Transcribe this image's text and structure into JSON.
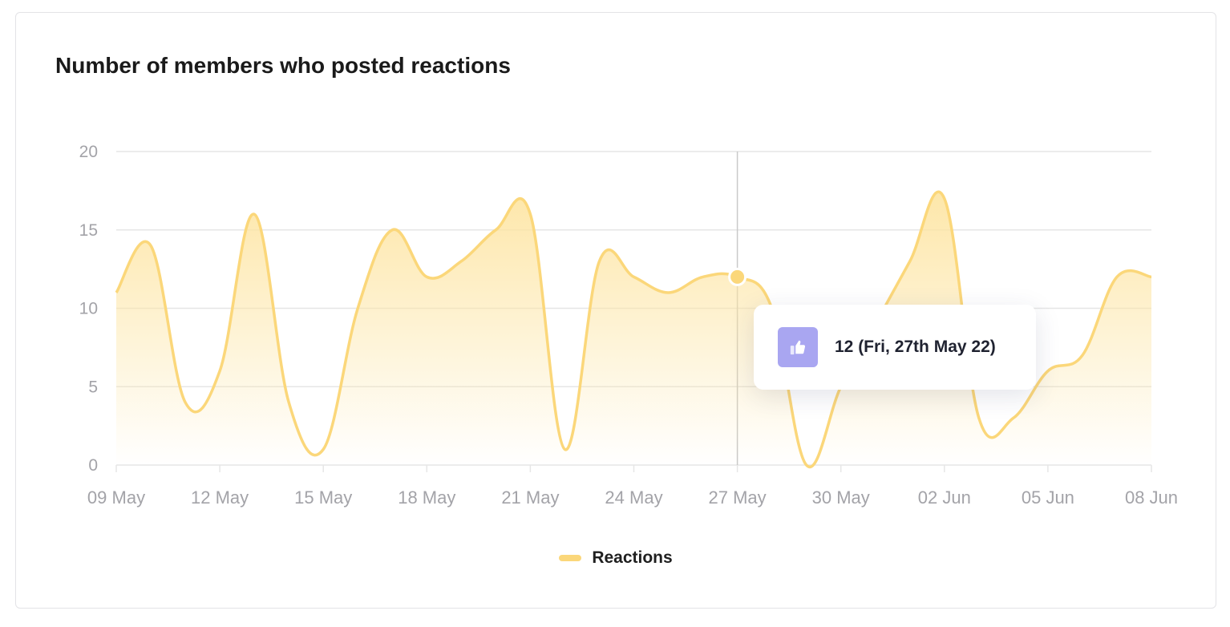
{
  "card": {
    "title": "Number of members who posted reactions"
  },
  "colors": {
    "line": "#fbd77a",
    "fill": "#fde4a0",
    "cursor": "#c9c9c9",
    "grid": "#e6e6e6",
    "tooltip_icon_bg": "#a9a6f1"
  },
  "tooltip": {
    "icon": "thumbs-up-icon",
    "text": "12 (Fri, 27th May 22)"
  },
  "legend": {
    "label": "Reactions"
  },
  "chart_data": {
    "type": "area",
    "title": "Number of members who posted reactions",
    "xlabel": "",
    "ylabel": "",
    "x": [
      "09 May",
      "10 May",
      "11 May",
      "12 May",
      "13 May",
      "14 May",
      "15 May",
      "16 May",
      "17 May",
      "18 May",
      "19 May",
      "20 May",
      "21 May",
      "22 May",
      "23 May",
      "24 May",
      "25 May",
      "26 May",
      "27 May",
      "28 May",
      "29 May",
      "30 May",
      "31 May",
      "01 Jun",
      "02 Jun",
      "03 Jun",
      "04 Jun",
      "05 Jun",
      "06 Jun",
      "07 Jun",
      "08 Jun"
    ],
    "x_tick_labels": [
      "09 May",
      "12 May",
      "15 May",
      "18 May",
      "21 May",
      "24 May",
      "27 May",
      "30 May",
      "02 Jun",
      "05 Jun",
      "08 Jun"
    ],
    "series": [
      {
        "name": "Reactions",
        "values": [
          11,
          14,
          4,
          6,
          16,
          4,
          1,
          10,
          15,
          12,
          13,
          15,
          16,
          1,
          13,
          12,
          11,
          12,
          12,
          10,
          0,
          5,
          9,
          13,
          17,
          3,
          3,
          6,
          7,
          12,
          12
        ]
      }
    ],
    "ylim": [
      0,
      20
    ],
    "yticks": [
      0,
      5,
      10,
      15,
      20
    ],
    "grid": true,
    "legend_position": "bottom-center",
    "highlighted_point": {
      "x": "27 May",
      "y": 12
    }
  }
}
